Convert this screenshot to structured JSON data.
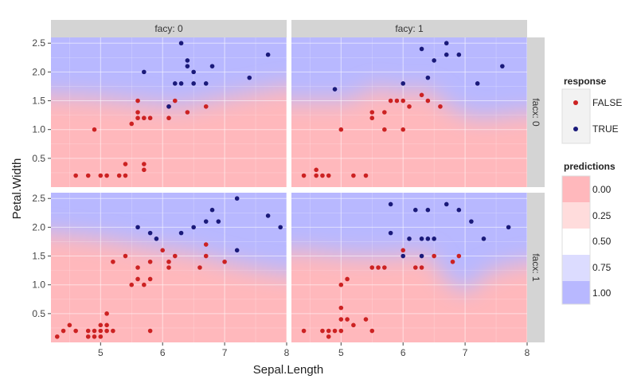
{
  "chart_data": {
    "type": "scatter",
    "facet_col_labels": [
      "facy: 0",
      "facy: 1"
    ],
    "facet_row_labels": [
      "facx: 0",
      "facx: 1"
    ],
    "xlabel": "Sepal.Length",
    "ylabel": "Petal.Width",
    "xlim": [
      4.2,
      8.0
    ],
    "ylim": [
      0.0,
      2.6
    ],
    "x_ticks": [
      5,
      6,
      7,
      8
    ],
    "y_ticks": [
      0.5,
      1.0,
      1.5,
      2.0,
      2.5
    ],
    "x_tick_labels": [
      "5",
      "6",
      "7",
      "8"
    ],
    "y_tick_labels": [
      "0.5",
      "1.0",
      "1.5",
      "2.0",
      "2.5"
    ],
    "legend_response": {
      "title": "response",
      "entries": [
        {
          "label": "FALSE",
          "color": "#cc2222"
        },
        {
          "label": "TRUE",
          "color": "#1a1a7a"
        }
      ]
    },
    "legend_predictions": {
      "title": "predictions",
      "entries": [
        {
          "label": "0.00",
          "color": "#ffb8bc"
        },
        {
          "label": "0.25",
          "color": "#ffdcdc"
        },
        {
          "label": "0.50",
          "color": "#ffffff"
        },
        {
          "label": "0.75",
          "color": "#dcdcff"
        },
        {
          "label": "1.00",
          "color": "#b8b8ff"
        }
      ]
    },
    "panels": [
      {
        "row": 0,
        "col": 0,
        "points": [
          [
            4.6,
            0.2,
            0
          ],
          [
            4.8,
            0.2,
            0
          ],
          [
            5.0,
            0.2,
            0
          ],
          [
            5.1,
            0.2,
            0
          ],
          [
            5.3,
            0.2,
            0
          ],
          [
            5.4,
            0.2,
            0
          ],
          [
            5.4,
            0.4,
            0
          ],
          [
            5.7,
            0.4,
            0
          ],
          [
            5.7,
            0.3,
            0
          ],
          [
            4.9,
            1.0,
            0
          ],
          [
            5.5,
            1.1,
            0
          ],
          [
            5.6,
            1.2,
            0
          ],
          [
            5.6,
            1.3,
            0
          ],
          [
            5.6,
            1.5,
            0
          ],
          [
            5.7,
            1.2,
            0
          ],
          [
            5.8,
            1.2,
            0
          ],
          [
            6.1,
            1.2,
            0
          ],
          [
            6.1,
            1.4,
            0
          ],
          [
            6.2,
            1.5,
            0
          ],
          [
            6.4,
            1.3,
            0
          ],
          [
            6.7,
            1.4,
            0
          ],
          [
            5.7,
            2.0,
            1
          ],
          [
            6.3,
            2.5,
            1
          ],
          [
            6.4,
            2.2,
            1
          ],
          [
            6.4,
            2.1,
            1
          ],
          [
            6.5,
            2.0,
            1
          ],
          [
            6.2,
            1.8,
            1
          ],
          [
            6.3,
            1.8,
            1
          ],
          [
            6.1,
            1.4,
            1
          ],
          [
            6.5,
            1.8,
            1
          ],
          [
            6.7,
            1.8,
            1
          ],
          [
            6.8,
            2.1,
            1
          ],
          [
            7.4,
            1.9,
            1
          ],
          [
            7.7,
            2.3,
            1
          ]
        ],
        "prediction_boundary": [
          [
            4.2,
            1.6
          ],
          [
            5.0,
            1.55
          ],
          [
            5.8,
            1.45
          ],
          [
            6.3,
            1.4
          ],
          [
            7.0,
            1.55
          ],
          [
            8.0,
            1.75
          ]
        ]
      },
      {
        "row": 0,
        "col": 1,
        "points": [
          [
            4.4,
            0.2,
            0
          ],
          [
            4.6,
            0.3,
            0
          ],
          [
            4.6,
            0.2,
            0
          ],
          [
            4.7,
            0.2,
            0
          ],
          [
            4.8,
            0.2,
            0
          ],
          [
            5.2,
            0.2,
            0
          ],
          [
            5.4,
            0.2,
            0
          ],
          [
            5.0,
            1.0,
            0
          ],
          [
            5.5,
            1.3,
            0
          ],
          [
            5.5,
            1.2,
            0
          ],
          [
            5.7,
            1.3,
            0
          ],
          [
            5.7,
            1.0,
            0
          ],
          [
            5.8,
            1.5,
            0
          ],
          [
            5.9,
            1.5,
            0
          ],
          [
            6.0,
            1.0,
            0
          ],
          [
            6.0,
            1.5,
            0
          ],
          [
            6.1,
            1.4,
            0
          ],
          [
            6.3,
            1.6,
            0
          ],
          [
            6.4,
            1.5,
            0
          ],
          [
            6.6,
            1.4,
            0
          ],
          [
            4.9,
            1.7,
            1
          ],
          [
            6.0,
            1.8,
            1
          ],
          [
            6.3,
            2.4,
            1
          ],
          [
            6.5,
            2.2,
            1
          ],
          [
            6.4,
            1.9,
            1
          ],
          [
            6.7,
            2.5,
            1
          ],
          [
            6.7,
            2.3,
            1
          ],
          [
            6.9,
            2.3,
            1
          ],
          [
            7.2,
            1.8,
            1
          ],
          [
            7.6,
            2.1,
            1
          ]
        ],
        "prediction_boundary": [
          [
            4.3,
            1.5
          ],
          [
            5.1,
            1.5
          ],
          [
            5.6,
            1.75
          ],
          [
            5.9,
            1.65
          ],
          [
            6.4,
            1.7
          ],
          [
            6.8,
            1.35
          ],
          [
            7.2,
            1.2
          ],
          [
            8.0,
            1.3
          ]
        ]
      },
      {
        "row": 1,
        "col": 0,
        "points": [
          [
            4.3,
            0.1,
            0
          ],
          [
            4.4,
            0.2,
            0
          ],
          [
            4.5,
            0.3,
            0
          ],
          [
            4.6,
            0.2,
            0
          ],
          [
            4.8,
            0.1,
            0
          ],
          [
            4.8,
            0.2,
            0
          ],
          [
            4.9,
            0.1,
            0
          ],
          [
            4.9,
            0.2,
            0
          ],
          [
            5.0,
            0.2,
            0
          ],
          [
            5.0,
            0.3,
            0
          ],
          [
            5.0,
            0.1,
            0
          ],
          [
            5.1,
            0.3,
            0
          ],
          [
            5.1,
            0.2,
            0
          ],
          [
            5.1,
            0.5,
            0
          ],
          [
            5.2,
            0.2,
            0
          ],
          [
            5.8,
            0.2,
            0
          ],
          [
            5.2,
            1.4,
            0
          ],
          [
            5.4,
            1.5,
            0
          ],
          [
            5.5,
            1.0,
            0
          ],
          [
            5.6,
            1.1,
            0
          ],
          [
            5.6,
            1.3,
            0
          ],
          [
            5.7,
            1.0,
            0
          ],
          [
            5.8,
            1.1,
            0
          ],
          [
            5.8,
            1.4,
            0
          ],
          [
            6.0,
            1.6,
            0
          ],
          [
            6.1,
            1.3,
            0
          ],
          [
            6.1,
            1.4,
            0
          ],
          [
            6.2,
            1.5,
            0
          ],
          [
            6.6,
            1.3,
            0
          ],
          [
            6.7,
            1.5,
            0
          ],
          [
            6.7,
            1.7,
            0
          ],
          [
            7.0,
            1.4,
            0
          ],
          [
            5.6,
            2.0,
            1
          ],
          [
            5.8,
            1.9,
            1
          ],
          [
            5.9,
            1.8,
            1
          ],
          [
            6.3,
            1.9,
            1
          ],
          [
            6.5,
            2.0,
            1
          ],
          [
            6.7,
            2.1,
            1
          ],
          [
            6.8,
            2.3,
            1
          ],
          [
            6.9,
            2.1,
            1
          ],
          [
            7.2,
            2.5,
            1
          ],
          [
            7.2,
            1.6,
            1
          ],
          [
            7.7,
            2.2,
            1
          ],
          [
            7.9,
            2.0,
            1
          ]
        ],
        "prediction_boundary": [
          [
            4.2,
            1.9
          ],
          [
            5.0,
            1.8
          ],
          [
            5.8,
            1.65
          ],
          [
            6.5,
            1.55
          ],
          [
            7.2,
            1.35
          ],
          [
            8.0,
            1.2
          ]
        ]
      },
      {
        "row": 1,
        "col": 1,
        "points": [
          [
            4.4,
            0.2,
            0
          ],
          [
            4.7,
            0.2,
            0
          ],
          [
            4.8,
            0.2,
            0
          ],
          [
            4.8,
            0.1,
            0
          ],
          [
            4.9,
            0.2,
            0
          ],
          [
            5.0,
            0.2,
            0
          ],
          [
            5.0,
            0.4,
            0
          ],
          [
            5.0,
            0.6,
            0
          ],
          [
            5.1,
            0.4,
            0
          ],
          [
            5.2,
            0.3,
            0
          ],
          [
            5.4,
            0.4,
            0
          ],
          [
            5.5,
            0.2,
            0
          ],
          [
            5.0,
            1.0,
            0
          ],
          [
            5.1,
            1.1,
            0
          ],
          [
            5.5,
            1.3,
            0
          ],
          [
            5.6,
            1.3,
            0
          ],
          [
            5.7,
            1.3,
            0
          ],
          [
            6.0,
            1.6,
            0
          ],
          [
            6.2,
            1.3,
            0
          ],
          [
            6.3,
            1.3,
            0
          ],
          [
            6.5,
            1.5,
            0
          ],
          [
            6.8,
            1.4,
            0
          ],
          [
            6.9,
            1.5,
            0
          ],
          [
            5.8,
            1.9,
            1
          ],
          [
            5.8,
            2.4,
            1
          ],
          [
            6.0,
            1.5,
            1
          ],
          [
            6.1,
            1.8,
            1
          ],
          [
            6.2,
            2.3,
            1
          ],
          [
            6.3,
            1.5,
            1
          ],
          [
            6.3,
            1.8,
            1
          ],
          [
            6.4,
            1.8,
            1
          ],
          [
            6.4,
            2.3,
            1
          ],
          [
            6.5,
            1.8,
            1
          ],
          [
            6.7,
            2.4,
            1
          ],
          [
            6.9,
            2.3,
            1
          ],
          [
            7.1,
            2.1,
            1
          ],
          [
            7.3,
            1.8,
            1
          ],
          [
            7.7,
            2.0,
            1
          ]
        ],
        "prediction_boundary": [
          [
            4.3,
            1.6
          ],
          [
            5.2,
            1.5
          ],
          [
            5.8,
            1.5
          ],
          [
            6.4,
            1.55
          ],
          [
            6.7,
            1.1
          ],
          [
            7.0,
            0.85
          ],
          [
            7.4,
            1.25
          ],
          [
            8.0,
            1.4
          ]
        ]
      }
    ]
  }
}
